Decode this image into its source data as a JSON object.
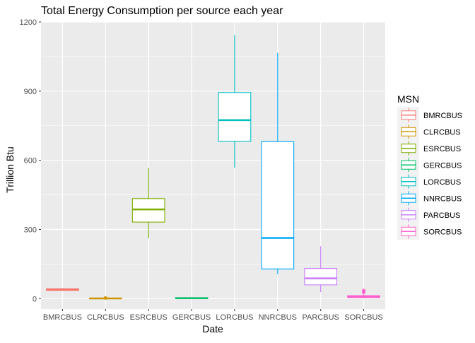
{
  "chart_data": {
    "type": "box",
    "title": "Total Energy Consumption per source each year",
    "xlabel": "Date",
    "ylabel": "Trillion Btu",
    "ylim": [
      -45,
      1200
    ],
    "yticks": [
      0,
      300,
      600,
      900,
      1200
    ],
    "grid": true,
    "legend": {
      "title": "MSN",
      "position": "right"
    },
    "categories": [
      "BMRCBUS",
      "CLRCBUS",
      "ESRCBUS",
      "GERCBUS",
      "LORCBUS",
      "NNRCBUS",
      "PARCBUS",
      "SORCBUS"
    ],
    "series": [
      {
        "name": "BMRCBUS",
        "color": "#F8766D",
        "min": 35,
        "q1": 36,
        "median": 39,
        "q3": 43,
        "max": 46,
        "outliers": []
      },
      {
        "name": "CLRCBUS",
        "color": "#CD9600",
        "min": 0,
        "q1": 0,
        "median": 1,
        "q3": 2,
        "max": 3,
        "outliers": [
          3
        ]
      },
      {
        "name": "ESRCBUS",
        "color": "#7CAE00",
        "min": 262,
        "q1": 332,
        "median": 387,
        "q3": 434,
        "max": 568,
        "outliers": []
      },
      {
        "name": "GERCBUS",
        "color": "#00BE67",
        "min": 0,
        "q1": 1,
        "median": 2,
        "q3": 4,
        "max": 6,
        "outliers": []
      },
      {
        "name": "LORCBUS",
        "color": "#00BFC4",
        "min": 568,
        "q1": 682,
        "median": 774,
        "q3": 894,
        "max": 1143,
        "outliers": []
      },
      {
        "name": "NNRCBUS",
        "color": "#00A9FF",
        "min": 106,
        "q1": 129,
        "median": 263,
        "q3": 681,
        "max": 1066,
        "outliers": []
      },
      {
        "name": "PARCBUS",
        "color": "#C77CFF",
        "min": 28,
        "q1": 60,
        "median": 88,
        "q3": 131,
        "max": 227,
        "outliers": []
      },
      {
        "name": "SORCBUS",
        "color": "#FF61CC",
        "min": 2,
        "q1": 5,
        "median": 9,
        "q3": 13,
        "max": 20,
        "outliers": [
          28,
          32,
          35
        ]
      }
    ]
  }
}
